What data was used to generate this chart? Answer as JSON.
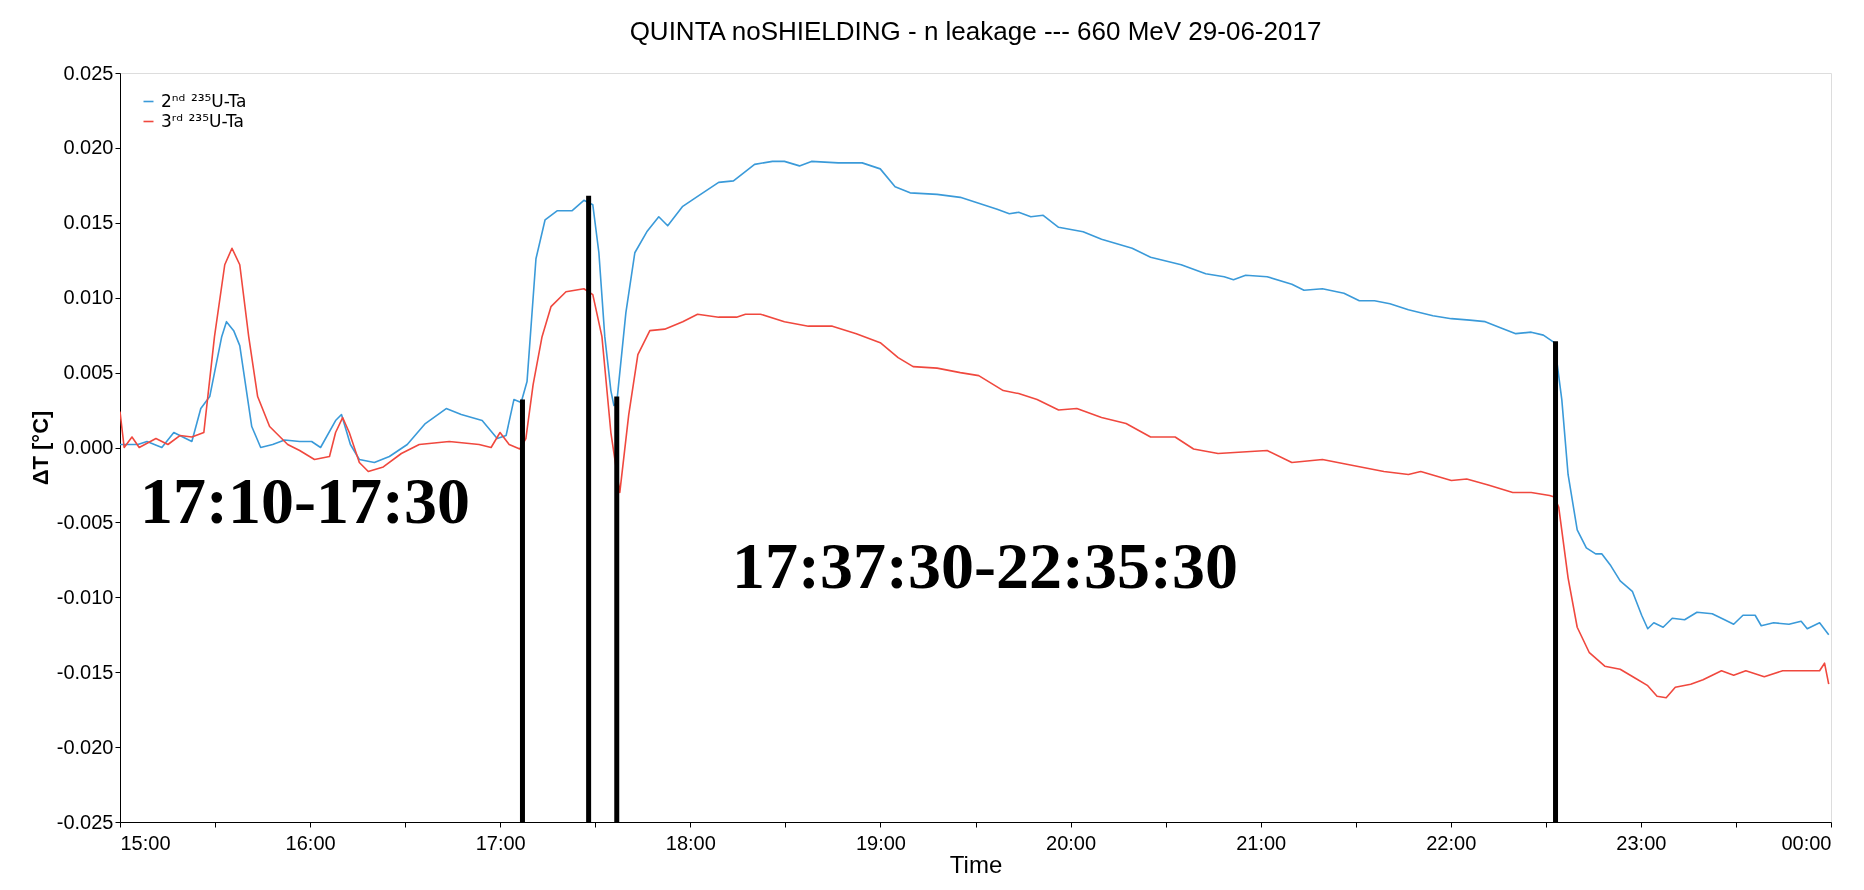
{
  "chart_data": {
    "type": "line",
    "title": "QUINTA noSHIELDING - n leakage  ---   660 MeV    29-06-2017",
    "xlabel": "Time",
    "ylabel": "ΔT [°C]",
    "xlim": [
      15,
      24
    ],
    "ylim": [
      -0.025,
      0.025
    ],
    "xticks": [
      {
        "value": 15,
        "label": "15:00"
      },
      {
        "value": 15.5,
        "label": null
      },
      {
        "value": 16,
        "label": "16:00"
      },
      {
        "value": 16.5,
        "label": null
      },
      {
        "value": 17,
        "label": "17:00"
      },
      {
        "value": 17.5,
        "label": null
      },
      {
        "value": 18,
        "label": "18:00"
      },
      {
        "value": 18.5,
        "label": null
      },
      {
        "value": 19,
        "label": "19:00"
      },
      {
        "value": 19.5,
        "label": null
      },
      {
        "value": 20,
        "label": "20:00"
      },
      {
        "value": 20.5,
        "label": null
      },
      {
        "value": 21,
        "label": "21:00"
      },
      {
        "value": 21.5,
        "label": null
      },
      {
        "value": 22,
        "label": "22:00"
      },
      {
        "value": 22.5,
        "label": null
      },
      {
        "value": 23,
        "label": "23:00"
      },
      {
        "value": 23.5,
        "label": null
      },
      {
        "value": 24,
        "label": "00:00"
      }
    ],
    "yticks": [
      {
        "value": -0.025,
        "label": "-0.025"
      },
      {
        "value": -0.02,
        "label": "-0.020"
      },
      {
        "value": -0.015,
        "label": "-0.015"
      },
      {
        "value": -0.01,
        "label": "-0.010"
      },
      {
        "value": -0.005,
        "label": "-0.005"
      },
      {
        "value": 0,
        "label": "0.000"
      },
      {
        "value": 0.005,
        "label": "0.005"
      },
      {
        "value": 0.01,
        "label": "0.010"
      },
      {
        "value": 0.015,
        "label": "0.015"
      },
      {
        "value": 0.02,
        "label": "0.020"
      },
      {
        "value": 0.025,
        "label": "0.025"
      }
    ],
    "grid": false,
    "legend": "top left",
    "line_style": "solid",
    "marker": "none",
    "series": [
      {
        "name": "2ⁿᵈ ²³⁵U-Ta",
        "color": "#3a9ad9",
        "x": [
          15.0,
          15.047,
          15.094,
          15.142,
          15.22,
          15.283,
          15.378,
          15.425,
          15.472,
          15.535,
          15.56,
          15.598,
          15.63,
          15.693,
          15.74,
          15.803,
          15.866,
          15.945,
          16.008,
          16.055,
          16.134,
          16.165,
          16.212,
          16.259,
          16.338,
          16.417,
          16.511,
          16.606,
          16.716,
          16.795,
          16.905,
          16.984,
          17.031,
          17.072,
          17.11,
          17.141,
          17.188,
          17.236,
          17.299,
          17.377,
          17.44,
          17.487,
          17.519,
          17.55,
          17.582,
          17.598,
          17.613,
          17.661,
          17.708,
          17.771,
          17.834,
          17.881,
          17.96,
          18.054,
          18.149,
          18.227,
          18.338,
          18.432,
          18.495,
          18.574,
          18.637,
          18.778,
          18.904,
          18.999,
          19.077,
          19.156,
          19.298,
          19.42,
          19.517,
          19.614,
          19.678,
          19.727,
          19.791,
          19.856,
          19.937,
          20.066,
          20.163,
          20.324,
          20.421,
          20.582,
          20.711,
          20.808,
          20.857,
          20.921,
          21.034,
          21.164,
          21.228,
          21.325,
          21.438,
          21.519,
          21.599,
          21.68,
          21.777,
          21.906,
          22.003,
          22.1,
          22.181,
          22.261,
          22.342,
          22.423,
          22.487,
          22.545,
          22.584,
          22.617,
          22.665,
          22.713,
          22.762,
          22.794,
          22.842,
          22.891,
          22.955,
          23.004,
          23.036,
          23.068,
          23.117,
          23.165,
          23.23,
          23.295,
          23.375,
          23.44,
          23.488,
          23.537,
          23.601,
          23.633,
          23.698,
          23.779,
          23.843,
          23.875,
          23.94,
          23.988
        ],
        "values": [
          0.0002,
          0.0002,
          0.0002,
          0.0004,
          0.0,
          0.001,
          0.0004,
          0.0026,
          0.0034,
          0.0074,
          0.0084,
          0.0078,
          0.0068,
          0.0014,
          0.0,
          0.0002,
          0.0005,
          0.0004,
          0.0004,
          0.0,
          0.0018,
          0.0022,
          0.0002,
          -0.0008,
          -0.001,
          -0.0006,
          0.0002,
          0.0016,
          0.0026,
          0.0022,
          0.0018,
          0.0006,
          0.0008,
          0.0032,
          0.003,
          0.0044,
          0.0126,
          0.0152,
          0.0158,
          0.0158,
          0.0165,
          0.0162,
          0.013,
          0.0074,
          0.0038,
          0.0028,
          0.003,
          0.009,
          0.013,
          0.0144,
          0.0154,
          0.0148,
          0.0161,
          0.0169,
          0.0177,
          0.0178,
          0.0189,
          0.0191,
          0.0191,
          0.0188,
          0.0191,
          0.019,
          0.019,
          0.0186,
          0.0174,
          0.017,
          0.0169,
          0.0167,
          0.0163,
          0.0159,
          0.0156,
          0.0157,
          0.0154,
          0.0155,
          0.0147,
          0.0144,
          0.0139,
          0.0133,
          0.0127,
          0.0122,
          0.0116,
          0.0114,
          0.0112,
          0.0115,
          0.0114,
          0.0109,
          0.0105,
          0.0106,
          0.0103,
          0.0098,
          0.0098,
          0.0096,
          0.0092,
          0.0088,
          0.0086,
          0.0085,
          0.0084,
          0.008,
          0.0076,
          0.0077,
          0.0075,
          0.007,
          0.0032,
          -0.0018,
          -0.0055,
          -0.0067,
          -0.0071,
          -0.0071,
          -0.0079,
          -0.0089,
          -0.0096,
          -0.0112,
          -0.0121,
          -0.0117,
          -0.012,
          -0.0114,
          -0.0115,
          -0.011,
          -0.0111,
          -0.0115,
          -0.0118,
          -0.0112,
          -0.0112,
          -0.0119,
          -0.0117,
          -0.0118,
          -0.0116,
          -0.0121,
          -0.0117,
          -0.0125
        ]
      },
      {
        "name": "3ʳᵈ ²³⁵U-Ta",
        "color": "#f0483e",
        "x": [
          15.0,
          15.022,
          15.063,
          15.101,
          15.189,
          15.252,
          15.315,
          15.378,
          15.441,
          15.497,
          15.551,
          15.589,
          15.63,
          15.677,
          15.724,
          15.787,
          15.882,
          15.945,
          16.023,
          16.102,
          16.134,
          16.171,
          16.206,
          16.259,
          16.306,
          16.385,
          16.48,
          16.574,
          16.732,
          16.889,
          16.952,
          16.999,
          17.047,
          17.103,
          17.135,
          17.173,
          17.22,
          17.267,
          17.346,
          17.44,
          17.487,
          17.535,
          17.582,
          17.629,
          17.676,
          17.724,
          17.787,
          17.865,
          17.96,
          18.038,
          18.149,
          18.243,
          18.29,
          18.369,
          18.495,
          18.621,
          18.747,
          18.873,
          18.999,
          19.093,
          19.172,
          19.298,
          19.42,
          19.517,
          19.646,
          19.727,
          19.824,
          19.937,
          20.033,
          20.163,
          20.292,
          20.421,
          20.55,
          20.647,
          20.776,
          20.905,
          21.034,
          21.164,
          21.325,
          21.486,
          21.648,
          21.777,
          21.842,
          22.003,
          22.084,
          22.197,
          22.326,
          22.423,
          22.52,
          22.545,
          22.568,
          22.617,
          22.665,
          22.729,
          22.81,
          22.891,
          22.971,
          23.036,
          23.085,
          23.133,
          23.181,
          23.262,
          23.327,
          23.424,
          23.488,
          23.552,
          23.649,
          23.746,
          23.843,
          23.94,
          23.966,
          23.988
        ],
        "values": [
          0.0024,
          0.0,
          0.0007,
          0.0,
          0.0006,
          0.0002,
          0.0008,
          0.0007,
          0.001,
          0.0074,
          0.0122,
          0.0133,
          0.0122,
          0.0074,
          0.0034,
          0.0014,
          0.0002,
          -0.0002,
          -0.0008,
          -0.0006,
          0.001,
          0.002,
          0.001,
          -0.001,
          -0.0016,
          -0.0013,
          -0.0004,
          0.0002,
          0.0004,
          0.0002,
          0.0,
          0.001,
          0.0002,
          -0.0001,
          0.0006,
          0.0042,
          0.0074,
          0.0094,
          0.0104,
          0.0106,
          0.0102,
          0.0074,
          0.001,
          -0.003,
          0.0022,
          0.0062,
          0.0078,
          0.0079,
          0.0084,
          0.0089,
          0.0087,
          0.0087,
          0.0089,
          0.0089,
          0.0084,
          0.0081,
          0.0081,
          0.0076,
          0.007,
          0.006,
          0.0054,
          0.0053,
          0.005,
          0.0048,
          0.0038,
          0.0036,
          0.0032,
          0.0025,
          0.0026,
          0.002,
          0.0016,
          0.0007,
          0.0007,
          -0.0001,
          -0.0004,
          -0.0003,
          -0.0002,
          -0.001,
          -0.0008,
          -0.0012,
          -0.0016,
          -0.0018,
          -0.0016,
          -0.0022,
          -0.0021,
          -0.0025,
          -0.003,
          -0.003,
          -0.0032,
          -0.0033,
          -0.004,
          -0.0087,
          -0.012,
          -0.0137,
          -0.0146,
          -0.0148,
          -0.0154,
          -0.0159,
          -0.0166,
          -0.0167,
          -0.016,
          -0.0158,
          -0.0155,
          -0.0149,
          -0.0152,
          -0.0149,
          -0.0153,
          -0.0149,
          -0.0149,
          -0.0149,
          -0.0144,
          -0.0158
        ]
      },
      {
        "color": "#000000",
        "x": [
          17.117,
          17.117
        ],
        "values": [
          -0.025,
          0.0032
        ]
      },
      {
        "color": "#000000",
        "x": [
          17.465,
          17.465
        ],
        "values": [
          -0.025,
          0.0168
        ]
      },
      {
        "color": "#000000",
        "x": [
          17.613,
          17.613
        ],
        "values": [
          -0.025,
          0.0034
        ]
      },
      {
        "color": "#000000",
        "x": [
          22.551,
          22.551
        ],
        "values": [
          -0.025,
          0.0071
        ]
      }
    ],
    "annotations": [
      "17:10-17:30",
      "17:37:30-22:35:30"
    ]
  }
}
